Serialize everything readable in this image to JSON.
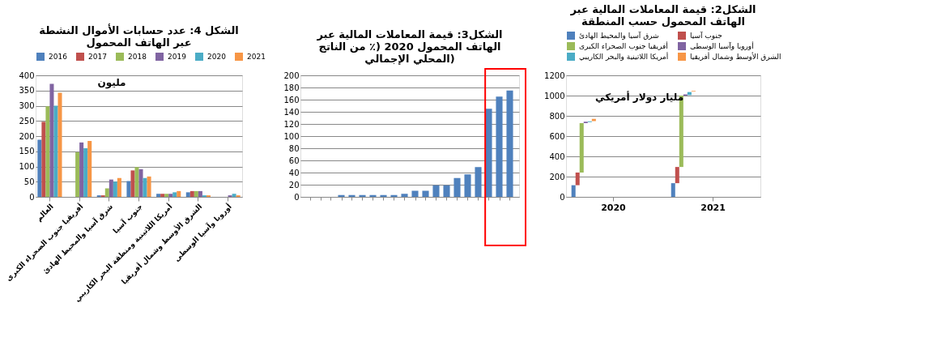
{
  "chart_data": [
    {
      "type": "bar",
      "title": "الشكل 4: عدد حسابات الأموال النشطة عبر الهاتف المحمول",
      "annotations": [
        "مليون"
      ],
      "categories": [
        "العالم",
        "أفريقيا جنوب الصحراء الكبرى",
        "شرق آسيا والمحيط الهادئ",
        "جنوب آسيا",
        "أمريكا اللاتينية ومنطقة البحر الكاريبي",
        "الشرق الأوسط وشمال أفريقيا",
        "أوروبا وآسيا الوسطى"
      ],
      "series": [
        {
          "name": "2016",
          "color": "#4f81bd",
          "values": [
            188,
            null,
            5,
            52,
            10,
            15,
            null
          ]
        },
        {
          "name": "2017",
          "color": "#c0504d",
          "values": [
            247,
            null,
            5,
            87,
            10,
            19,
            null
          ]
        },
        {
          "name": "2018",
          "color": "#9bbb59",
          "values": [
            298,
            147,
            28,
            98,
            10,
            19,
            null
          ]
        },
        {
          "name": "2019",
          "color": "#8064a2",
          "values": [
            372,
            179,
            57,
            91,
            10,
            19,
            5
          ]
        },
        {
          "name": "2020",
          "color": "#4bacc6",
          "values": [
            300,
            160,
            50,
            62,
            15,
            5,
            10
          ]
        },
        {
          "name": "2021",
          "color": "#f79646",
          "values": [
            343,
            184,
            62,
            67,
            19,
            5,
            5
          ]
        }
      ],
      "ylim": [
        0,
        400
      ],
      "yticks": [
        0,
        50,
        100,
        150,
        200,
        250,
        300,
        350,
        400
      ],
      "grid": "y",
      "legend": "top"
    },
    {
      "type": "bar",
      "title": "الشكل3: قيمة المعاملات المالية عبر الهاتف المحمول 2020 (٪ من الناتج المحلي الإجمالي)",
      "categories": [
        null,
        null,
        null,
        null,
        null,
        null,
        null,
        null,
        null,
        null,
        null,
        null,
        null,
        null,
        null,
        null,
        null,
        null,
        null,
        null
      ],
      "values": [
        0,
        0,
        0,
        3,
        3,
        3,
        3,
        3,
        3,
        5,
        10,
        10,
        19,
        19,
        31,
        37,
        49,
        145,
        165,
        175
      ],
      "color": "#4f81bd",
      "ylim": [
        0,
        200
      ],
      "yticks": [
        0,
        20,
        40,
        60,
        80,
        100,
        120,
        140,
        160,
        180,
        200
      ],
      "grid": "y"
    },
    {
      "type": "bar",
      "title": "الشكل2: قيمة المعاملات المالية عبر الهاتف المحمول حسب المنطقة",
      "annotations": [
        "مليار دولار أمريكي"
      ],
      "categories": [
        "2020",
        "2021"
      ],
      "series": [
        {
          "name": "شرق آسيا والمحيط الهادئ",
          "color": "#4f81bd",
          "values": [
            115,
            135
          ],
          "base": [
            0,
            0
          ]
        },
        {
          "name": "جنوب آسيا",
          "color": "#c0504d",
          "values": [
            125,
            160
          ],
          "base": [
            115,
            135
          ]
        },
        {
          "name": "أفريقيا جنوب الصحراء الكبرى",
          "color": "#9bbb59",
          "values": [
            488,
            705
          ],
          "base": [
            240,
            295
          ]
        },
        {
          "name": "أوروبا وآسيا الوسطى",
          "color": "#8064a2",
          "values": [
            14,
            12
          ],
          "base": [
            728,
            1000
          ]
        },
        {
          "name": "أمريكا اللاتينية والبحر الكاريبي",
          "color": "#4bacc6",
          "values": [
            8,
            30
          ],
          "base": [
            738,
            1005
          ]
        },
        {
          "name": "الشرق الأوسط وشمال أفريقيا",
          "color": "#f79646",
          "values": [
            22,
            6
          ],
          "base": [
            748,
            1040
          ]
        }
      ],
      "ylim": [
        0,
        1200
      ],
      "yticks": [
        0,
        200,
        400,
        600,
        800,
        1000,
        1200
      ],
      "grid": "y",
      "legend": "top"
    }
  ]
}
